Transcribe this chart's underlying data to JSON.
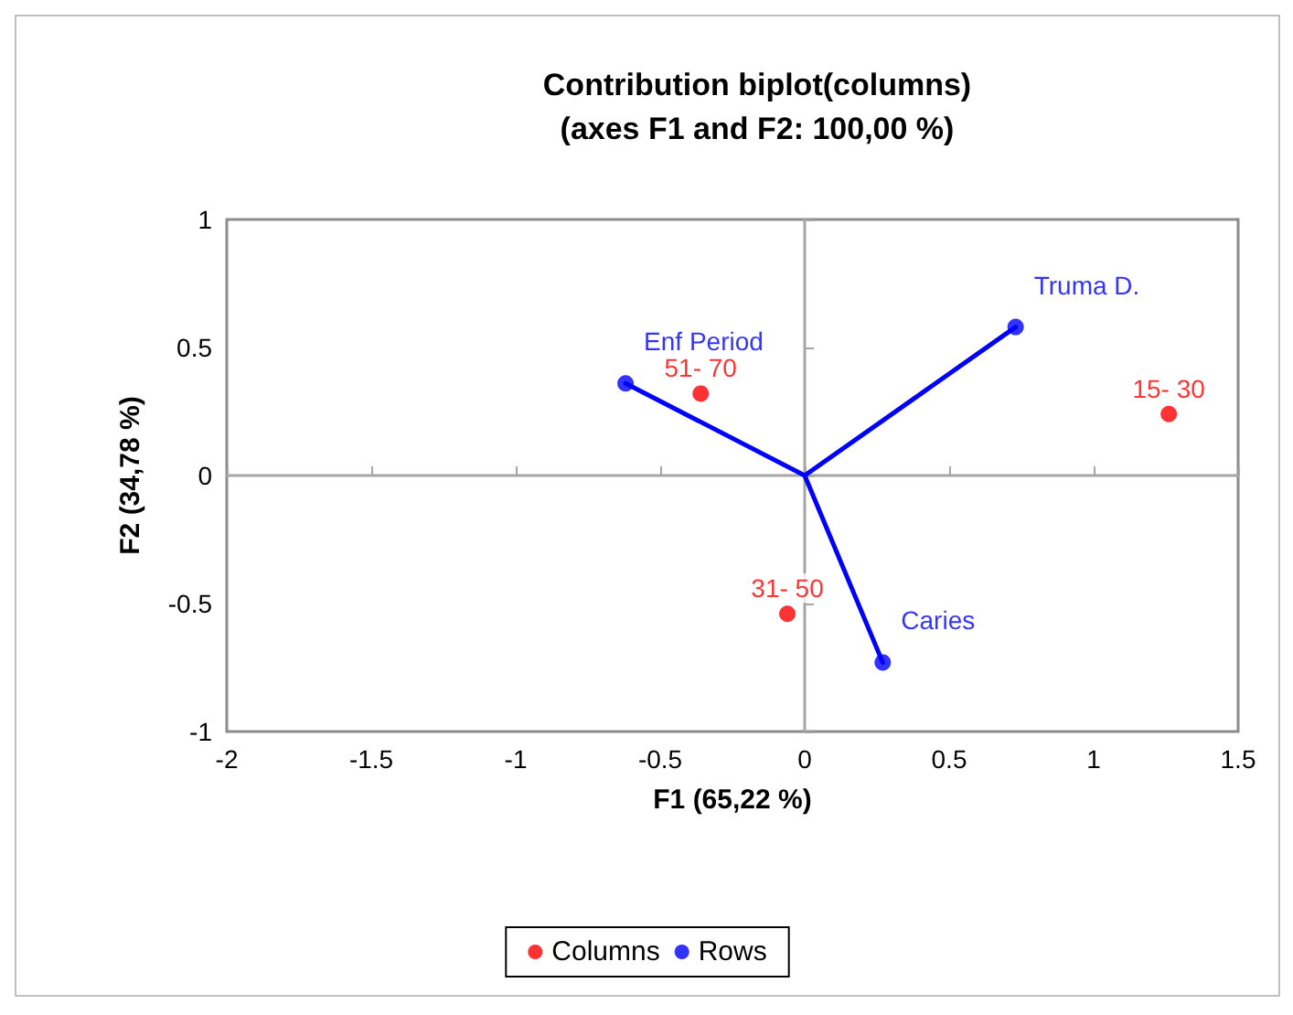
{
  "chart_data": {
    "type": "scatter",
    "title": "Contribution biplot(columns)",
    "subtitle": "(axes F1 and F2: 100,00 %)",
    "xlabel": "F1 (65,22 %)",
    "ylabel": "F2 (34,78 %)",
    "series": [
      {
        "name": "Columns",
        "color": "#ff0000",
        "x": [
          -0.36,
          1.26,
          -0.06
        ],
        "values": [
          0.32,
          0.24,
          -0.54
        ]
      },
      {
        "name": "Rows",
        "color": "#0000ff",
        "x": [
          -0.62,
          0.73,
          0.27
        ],
        "values": [
          0.36,
          0.58,
          -0.73
        ]
      },
      {
        "type": "line",
        "color": "#0000ff",
        "marker": "none",
        "x": [
          0,
          -0.62
        ],
        "values": [
          0,
          0.36
        ]
      },
      {
        "type": "line",
        "color": "#0000ff",
        "marker": "none",
        "x": [
          0,
          0.73
        ],
        "values": [
          0,
          0.58
        ]
      },
      {
        "type": "line",
        "color": "#0000ff",
        "marker": "none",
        "x": [
          0,
          0.27
        ],
        "values": [
          0,
          -0.73
        ]
      }
    ],
    "annotations": [
      {
        "text": "51- 70",
        "x": -0.36,
        "y": 0.32
      },
      {
        "text": "15- 30",
        "x": 1.26,
        "y": 0.24
      },
      {
        "text": "31- 50",
        "x": -0.06,
        "y": -0.54
      },
      {
        "text": "Enf Period",
        "x": -0.62,
        "y": 0.36
      },
      {
        "text": "Truma D.",
        "x": 0.73,
        "y": 0.58
      },
      {
        "text": "Caries",
        "x": 0.27,
        "y": -0.73
      }
    ],
    "xlim": [
      -2,
      1.5
    ],
    "xticks": [
      -2,
      -1.5,
      -1,
      -0.5,
      0,
      0.5,
      1,
      1.5
    ],
    "ylim": [
      -1,
      1
    ],
    "yticks": [
      -1,
      -0.5,
      0,
      0.5,
      1
    ],
    "legend": "bottom",
    "marker": "circle",
    "line_style": "solid"
  }
}
